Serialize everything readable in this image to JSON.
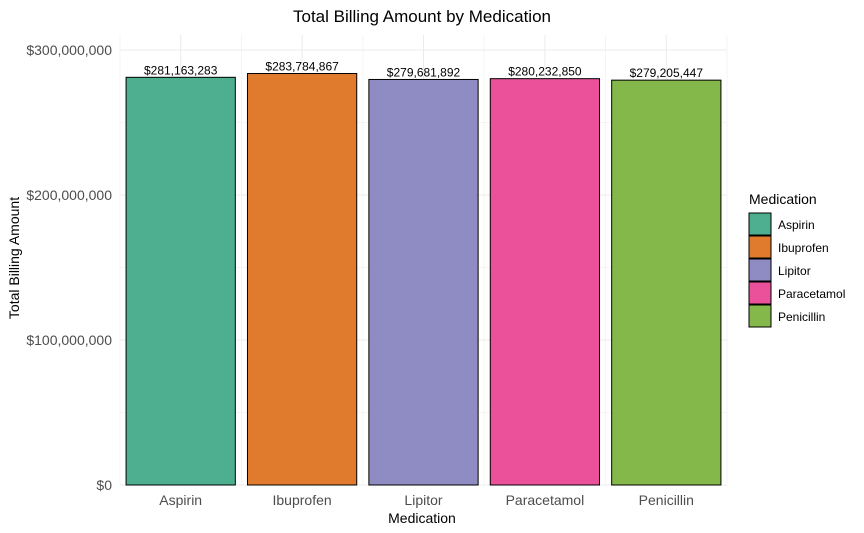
{
  "chart_data": {
    "type": "bar",
    "title": "Total Billing Amount by Medication",
    "xlabel": "Medication",
    "ylabel": "Total Billing Amount",
    "categories": [
      "Aspirin",
      "Ibuprofen",
      "Lipitor",
      "Paracetamol",
      "Penicillin"
    ],
    "values": [
      281163283,
      283784867,
      279681892,
      280232850,
      279205447
    ],
    "data_labels": [
      "$281,163,283",
      "$283,784,867",
      "$279,681,892",
      "$280,232,850",
      "$279,205,447"
    ],
    "colors": [
      "#4daf8f",
      "#e07b2e",
      "#8f8cc3",
      "#ea519a",
      "#84b84a"
    ],
    "ylim": [
      0,
      300000000
    ],
    "y_ticks": [
      0,
      100000000,
      200000000,
      300000000
    ],
    "y_tick_labels": [
      "$0",
      "$100,000,000",
      "$200,000,000",
      "$300,000,000"
    ],
    "grid": true,
    "legend": {
      "title": "Medication",
      "position": "right",
      "entries": [
        "Aspirin",
        "Ibuprofen",
        "Lipitor",
        "Paracetamol",
        "Penicillin"
      ]
    }
  }
}
